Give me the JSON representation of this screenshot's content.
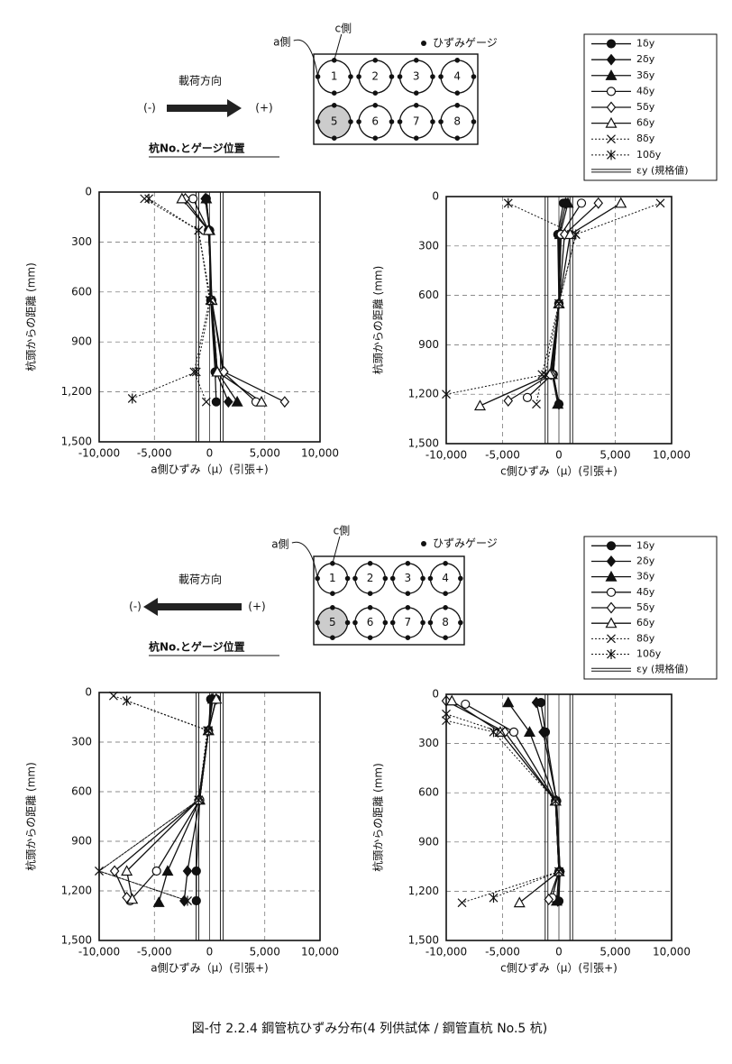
{
  "chart_data": [
    {
      "type": "line",
      "xlabel": "a側ひずみ（μ）(引張+)",
      "ylabel": "杭頭からの距離 (mm)",
      "xlim": [
        -10000,
        10000
      ],
      "ylim": [
        0,
        1500
      ],
      "y_inverted": true,
      "xticks": [
        {
          "value": -10000,
          "label": "-10,000"
        },
        {
          "value": -5000,
          "label": "-5,000"
        },
        0,
        {
          "value": 5000,
          "label": "5,000"
        },
        {
          "value": 10000,
          "label": "10,000"
        }
      ],
      "yticks": [
        0,
        300,
        600,
        900,
        {
          "value": 1200,
          "label": "1,200"
        },
        {
          "value": 1500,
          "label": "1,500"
        }
      ],
      "yield_lines": [
        -1100,
        1100
      ],
      "series": [
        {
          "x": [
            -300,
            0,
            100,
            500,
            600
          ],
          "y": [
            40,
            230,
            650,
            1080,
            1260
          ]
        },
        {
          "x": [
            -400,
            0,
            150,
            600,
            1700
          ],
          "y": [
            40,
            230,
            650,
            1080,
            1260
          ]
        },
        {
          "x": [
            -300,
            0,
            200,
            700,
            2500
          ],
          "y": [
            40,
            230,
            650,
            1080,
            1260
          ]
        },
        {
          "x": [
            -1500,
            -100,
            200,
            1200,
            4200
          ],
          "y": [
            40,
            230,
            650,
            1080,
            1260
          ]
        },
        {
          "x": [
            -2200,
            -100,
            200,
            1300,
            6800
          ],
          "y": [
            40,
            230,
            650,
            1080,
            1260
          ]
        },
        {
          "x": [
            -2500,
            -100,
            200,
            700,
            4700
          ],
          "y": [
            40,
            230,
            650,
            1080,
            1260
          ]
        },
        {
          "x": [
            -5900,
            -1000,
            0,
            -1400,
            -300
          ],
          "y": [
            40,
            230,
            650,
            1080,
            1260
          ]
        },
        {
          "x": [
            -5500,
            -1000,
            100,
            -1200,
            -7000
          ],
          "y": [
            40,
            230,
            650,
            1080,
            1240
          ]
        }
      ]
    },
    {
      "type": "line",
      "xlabel": "c側ひずみ（μ）(引張+)",
      "ylabel": "杭頭からの距離 (mm)",
      "xlim": [
        -10000,
        10000
      ],
      "ylim": [
        0,
        1500
      ],
      "y_inverted": true,
      "xticks": [
        {
          "value": -10000,
          "label": "-10,000"
        },
        {
          "value": -5000,
          "label": "-5,000"
        },
        0,
        {
          "value": 5000,
          "label": "5,000"
        },
        {
          "value": 10000,
          "label": "10,000"
        }
      ],
      "yticks": [
        0,
        300,
        600,
        900,
        {
          "value": 1200,
          "label": "1,200"
        },
        {
          "value": 1500,
          "label": "1,500"
        }
      ],
      "yield_lines": [
        -1100,
        1100
      ],
      "series": [
        {
          "x": [
            400,
            -100,
            0,
            -500,
            0
          ],
          "y": [
            40,
            230,
            650,
            1080,
            1260
          ]
        },
        {
          "x": [
            600,
            0,
            0,
            -500,
            0
          ],
          "y": [
            40,
            230,
            650,
            1080,
            1260
          ]
        },
        {
          "x": [
            800,
            100,
            0,
            -600,
            -100
          ],
          "y": [
            40,
            230,
            650,
            1080,
            1260
          ]
        },
        {
          "x": [
            2000,
            200,
            0,
            -600,
            -2800
          ],
          "y": [
            40,
            230,
            650,
            1080,
            1220
          ]
        },
        {
          "x": [
            3500,
            500,
            0,
            -700,
            -4500
          ],
          "y": [
            40,
            230,
            650,
            1080,
            1240
          ]
        },
        {
          "x": [
            5500,
            1000,
            0,
            -800,
            -7000
          ],
          "y": [
            40,
            230,
            650,
            1080,
            1270
          ]
        },
        {
          "x": [
            9000,
            1500,
            0,
            -1500,
            -2000
          ],
          "y": [
            40,
            230,
            650,
            1080,
            1260
          ]
        },
        {
          "x": [
            -4500,
            1500,
            0,
            -1200,
            -10000
          ],
          "y": [
            40,
            230,
            650,
            1080,
            1200
          ]
        }
      ]
    },
    {
      "type": "line",
      "xlabel": "a側ひずみ（μ）(引張+)",
      "ylabel": "杭頭からの距離 (mm)",
      "xlim": [
        -10000,
        10000
      ],
      "ylim": [
        0,
        1500
      ],
      "y_inverted": true,
      "xticks": [
        {
          "value": -10000,
          "label": "-10,000"
        },
        {
          "value": -5000,
          "label": "-5,000"
        },
        0,
        {
          "value": 5000,
          "label": "5,000"
        },
        {
          "value": 10000,
          "label": "10,000"
        }
      ],
      "yticks": [
        0,
        300,
        600,
        900,
        {
          "value": 1200,
          "label": "1,200"
        },
        {
          "value": 1500,
          "label": "1,500"
        }
      ],
      "yield_lines": [
        -1100,
        1100
      ],
      "series": [
        {
          "x": [
            100,
            -100,
            -900,
            -1200,
            -1200
          ],
          "y": [
            40,
            230,
            650,
            1080,
            1260
          ]
        },
        {
          "x": [
            200,
            -100,
            -900,
            -2000,
            -2300
          ],
          "y": [
            40,
            230,
            650,
            1080,
            1260
          ]
        },
        {
          "x": [
            300,
            -100,
            -900,
            -3800,
            -4600
          ],
          "y": [
            40,
            230,
            650,
            1080,
            1270
          ]
        },
        {
          "x": [
            600,
            -100,
            -900,
            -4800,
            -7200
          ],
          "y": [
            40,
            230,
            650,
            1080,
            1260
          ]
        },
        {
          "x": [
            600,
            -100,
            -1000,
            -8600,
            -7500
          ],
          "y": [
            40,
            230,
            650,
            1080,
            1240
          ]
        },
        {
          "x": [
            600,
            -100,
            -1000,
            -7500,
            -7000
          ],
          "y": [
            40,
            230,
            650,
            1080,
            1250
          ]
        },
        {
          "x": [
            -8700,
            -200,
            -1000,
            -10000,
            -2000
          ],
          "y": [
            20,
            230,
            650,
            1080,
            1260
          ]
        },
        {
          "x": [
            -7500,
            -100,
            -1000,
            -10000,
            -2000
          ],
          "y": [
            50,
            230,
            650,
            1080,
            1260
          ]
        }
      ]
    },
    {
      "type": "line",
      "xlabel": "c側ひずみ（μ）(引張+)",
      "ylabel": "杭頭からの距離 (mm)",
      "xlim": [
        -10000,
        10000
      ],
      "ylim": [
        0,
        1500
      ],
      "y_inverted": true,
      "xticks": [
        {
          "value": -10000,
          "label": "-10,000"
        },
        {
          "value": -5000,
          "label": "-5,000"
        },
        0,
        {
          "value": 5000,
          "label": "5,000"
        },
        {
          "value": 10000,
          "label": "10,000"
        }
      ],
      "yticks": [
        0,
        300,
        600,
        900,
        {
          "value": 1200,
          "label": "1,200"
        },
        {
          "value": 1500,
          "label": "1,500"
        }
      ],
      "yield_lines": [
        -1100,
        1100
      ],
      "series": [
        {
          "x": [
            -1600,
            -1200,
            -200,
            100,
            0
          ],
          "y": [
            50,
            230,
            650,
            1080,
            1260
          ]
        },
        {
          "x": [
            -2000,
            -1400,
            -200,
            100,
            -100
          ],
          "y": [
            50,
            230,
            650,
            1080,
            1260
          ]
        },
        {
          "x": [
            -4500,
            -2600,
            -300,
            0,
            -200
          ],
          "y": [
            50,
            230,
            650,
            1080,
            1260
          ]
        },
        {
          "x": [
            -8300,
            -4000,
            -300,
            0,
            -600
          ],
          "y": [
            60,
            230,
            650,
            1080,
            1240
          ]
        },
        {
          "x": [
            -10000,
            -4800,
            -300,
            0,
            -900
          ],
          "y": [
            40,
            230,
            650,
            1080,
            1250
          ]
        },
        {
          "x": [
            -9500,
            -5200,
            -300,
            0,
            -3500
          ],
          "y": [
            40,
            230,
            650,
            1080,
            1270
          ]
        },
        {
          "x": [
            -10000,
            -5200,
            -300,
            0,
            -8600
          ],
          "y": [
            120,
            230,
            650,
            1080,
            1270
          ]
        },
        {
          "x": [
            -10000,
            -5800,
            -300,
            0,
            -5800
          ],
          "y": [
            160,
            230,
            650,
            1080,
            1240
          ]
        }
      ]
    }
  ],
  "panels": [
    {
      "a_label": "a側",
      "c_label": "c側",
      "gauge_label": "ひずみゲージ",
      "direction_label": "載荷方向",
      "minus": "(-)",
      "plus": "(+)",
      "arrow": "right",
      "pile_label": "杭No.とゲージ位置",
      "gauges": [
        "1",
        "2",
        "3",
        "4",
        "5",
        "6",
        "7",
        "8"
      ],
      "shaded_gauge": "5",
      "legend": [
        {
          "name": "1δy",
          "marker": "circle",
          "filled": true,
          "dash": false
        },
        {
          "name": "2δy",
          "marker": "diamond",
          "filled": true,
          "dash": false
        },
        {
          "name": "3δy",
          "marker": "triangle",
          "filled": true,
          "dash": false
        },
        {
          "name": "4δy",
          "marker": "circle",
          "filled": false,
          "dash": false
        },
        {
          "name": "5δy",
          "marker": "diamond",
          "filled": false,
          "dash": false
        },
        {
          "name": "6δy",
          "marker": "triangle",
          "filled": false,
          "dash": false
        },
        {
          "name": "8δy",
          "marker": "x",
          "filled": false,
          "dash": true
        },
        {
          "name": "10δy",
          "marker": "star",
          "filled": false,
          "dash": true
        }
      ],
      "legend_yield": "εy (規格値)"
    },
    {
      "a_label": "a側",
      "c_label": "c側",
      "gauge_label": "ひずみゲージ",
      "direction_label": "載荷方向",
      "minus": "(-)",
      "plus": "(+)",
      "arrow": "left",
      "pile_label": "杭No.とゲージ位置",
      "gauges": [
        "1",
        "2",
        "3",
        "4",
        "5",
        "6",
        "7",
        "8"
      ],
      "shaded_gauge": "5",
      "legend": [
        {
          "name": "1δy",
          "marker": "circle",
          "filled": true,
          "dash": false
        },
        {
          "name": "2δy",
          "marker": "diamond",
          "filled": true,
          "dash": false
        },
        {
          "name": "3δy",
          "marker": "triangle",
          "filled": true,
          "dash": false
        },
        {
          "name": "4δy",
          "marker": "circle",
          "filled": false,
          "dash": false
        },
        {
          "name": "5δy",
          "marker": "diamond",
          "filled": false,
          "dash": false
        },
        {
          "name": "6δy",
          "marker": "triangle",
          "filled": false,
          "dash": false
        },
        {
          "name": "8δy",
          "marker": "x",
          "filled": false,
          "dash": true
        },
        {
          "name": "10δy",
          "marker": "star",
          "filled": false,
          "dash": true
        }
      ],
      "legend_yield": "εy (規格値)"
    }
  ],
  "caption": "図-付 2.2.4 鋼管杭ひずみ分布(4 列供試体 / 鋼管直杭 No.5 杭)"
}
